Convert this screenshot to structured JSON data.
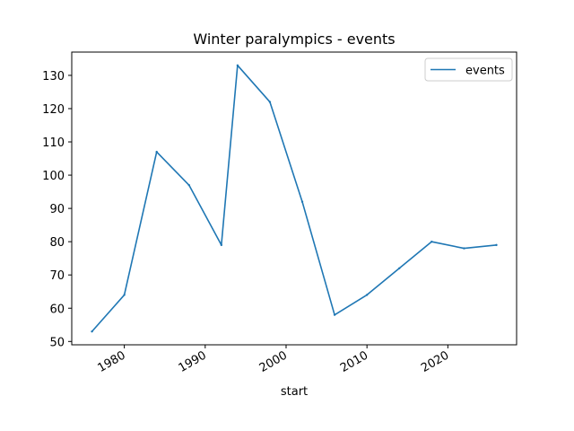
{
  "chart_data": {
    "type": "line",
    "title": "Winter paralympics - events",
    "xlabel": "start",
    "ylabel": "",
    "x_ticks": [
      1980,
      1990,
      2000,
      2010,
      2020
    ],
    "y_ticks": [
      50,
      60,
      70,
      80,
      90,
      100,
      110,
      120,
      130
    ],
    "xlim": [
      1973.5,
      2028.5
    ],
    "ylim": [
      49,
      137
    ],
    "grid": false,
    "legend_position": "top-right",
    "series": [
      {
        "name": "events",
        "color": "#1f77b4",
        "points": [
          {
            "x": 1976,
            "y": 53
          },
          {
            "x": 1980,
            "y": 64
          },
          {
            "x": 1984,
            "y": 107
          },
          {
            "x": 1988,
            "y": 97
          },
          {
            "x": 1992,
            "y": 79
          },
          {
            "x": 1994,
            "y": 133
          },
          {
            "x": 1998,
            "y": 122
          },
          {
            "x": 2002,
            "y": 92
          },
          {
            "x": 2006,
            "y": 58
          },
          {
            "x": 2010,
            "y": 64
          },
          {
            "x": 2014,
            "y": 72
          },
          {
            "x": 2018,
            "y": 80
          },
          {
            "x": 2022,
            "y": 78
          },
          {
            "x": 2026,
            "y": 79
          }
        ]
      }
    ]
  }
}
